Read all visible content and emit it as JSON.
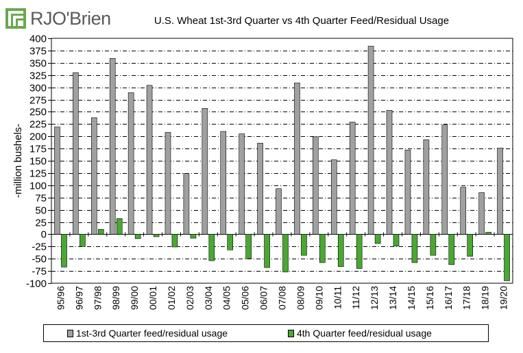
{
  "logo": {
    "text": "RJO'Brien",
    "colors": {
      "mark": "#6aa84f",
      "text": "#5a5a5a"
    }
  },
  "chart_data": {
    "type": "bar",
    "title": "U.S. Wheat 1st-3rd Quarter vs 4th Quarter Feed/Residual  Usage",
    "ylabel": "-million bushels-",
    "xlabel": "",
    "ylim": [
      -100,
      400
    ],
    "yticks": [
      400,
      375,
      350,
      325,
      300,
      275,
      250,
      225,
      200,
      175,
      150,
      125,
      100,
      75,
      50,
      25,
      0,
      -25,
      -50,
      -75,
      -100
    ],
    "grid": "horizontal dash-dot",
    "legend_placement": "bottom",
    "categories": [
      "95/96",
      "96/97",
      "97/98",
      "98/99",
      "99/00",
      "00/01",
      "01/02",
      "02/03",
      "03/04",
      "04/05",
      "05/06",
      "06/07",
      "07/08",
      "08/09",
      "09/10",
      "10/11",
      "11/12",
      "12/13",
      "13/14",
      "14/15",
      "15/16",
      "16/17",
      "17/18",
      "18/19",
      "19/20"
    ],
    "series": [
      {
        "name": "1st-3rd Quarter feed/residual usage",
        "color": "#a0a0a0",
        "values": [
          219,
          330,
          238,
          359,
          289,
          304,
          208,
          124,
          257,
          210,
          205,
          186,
          93,
          309,
          199,
          152,
          229,
          384,
          253,
          172,
          193,
          223,
          96,
          85,
          176
        ]
      },
      {
        "name": "4th Quarter feed/residual usage",
        "color": "#4aa832",
        "values": [
          -67,
          -25,
          10,
          32,
          -9,
          -5,
          -26,
          -8,
          -54,
          -32,
          -50,
          -68,
          -77,
          -43,
          -58,
          -66,
          -70,
          -19,
          -24,
          -58,
          -43,
          -62,
          -45,
          4,
          -95
        ]
      }
    ]
  }
}
